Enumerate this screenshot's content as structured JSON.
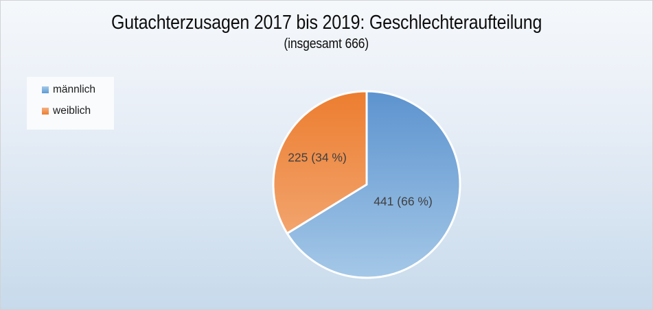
{
  "window": {
    "background_top": "#f5f8fb",
    "background_bottom": "#c7daeb",
    "border_color": "#d2d2d2"
  },
  "chart_data": {
    "type": "pie",
    "title": "Gutachterzusagen 2017 bis 2019: Geschlechteraufteilung",
    "subtitle": "(insgesamt 666)",
    "total": 666,
    "legend_position": "left-top",
    "start_angle_deg": 0,
    "direction": "clockwise",
    "label_color": "#404040",
    "slices": [
      {
        "label": "männlich",
        "value": 441,
        "percent": 66,
        "data_label": "441 (66 %)",
        "color": "#5B9BD5",
        "gradient_top": "#5B92CE",
        "gradient_bottom": "#A6C9E8"
      },
      {
        "label": "weiblich",
        "value": 225,
        "percent": 34,
        "data_label": "225 (34 %)",
        "color": "#ED7D31",
        "gradient_top": "#EC7C2D",
        "gradient_bottom": "#F4B183"
      }
    ]
  }
}
